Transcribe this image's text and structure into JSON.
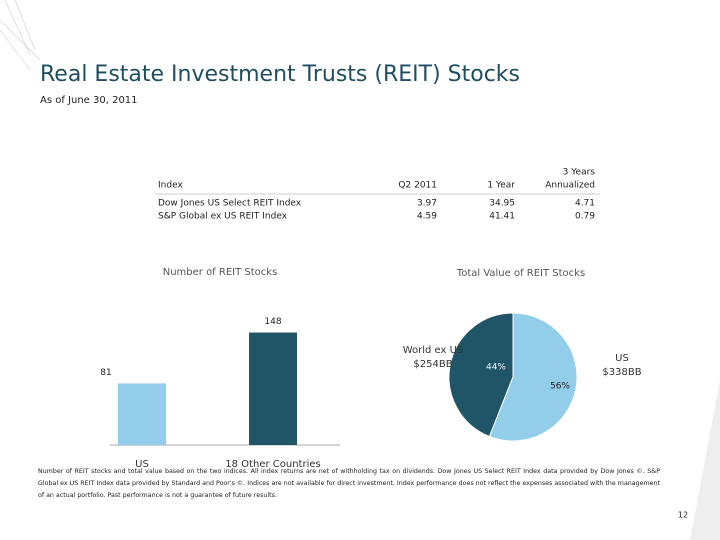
{
  "header": {
    "title": "Real Estate Investment Trusts (REIT) Stocks",
    "subtitle": "As of June 30, 2011"
  },
  "table": {
    "columns": [
      "Index",
      "Q2 2011",
      "1 Year",
      [
        "3 Years",
        "Annualized"
      ]
    ],
    "rows": [
      [
        "Dow Jones US Select REIT Index",
        3.97,
        34.95,
        4.71
      ],
      [
        "S&P Global ex US REIT Index",
        4.59,
        41.41,
        0.79
      ]
    ]
  },
  "chart_data": [
    {
      "type": "bar",
      "title": "Number of REIT Stocks",
      "categories": [
        "US",
        "18 Other Countries"
      ],
      "values": [
        81,
        148
      ],
      "colors": [
        "#92cdea",
        "#1f5566"
      ]
    },
    {
      "type": "pie",
      "title": "Total Value of REIT Stocks",
      "categories": [
        "World ex US",
        "US"
      ],
      "labels": [
        "$254BB",
        "$338BB"
      ],
      "values": [
        44,
        56
      ],
      "value_labels": [
        "44%",
        "56%"
      ],
      "colors": [
        "#1f5566",
        "#92cdea"
      ]
    }
  ],
  "footnote": "Number of REIT stocks and total value based on the two indices. All index returns are net of withholding tax on dividends. Dow Jones US Select REIT Index data provided by Dow Jones ©. S&P Global ex US REIT Index data provided by Standard and Poor's ©. Indices are not available for direct investment. Index performance does not reflect the expenses associated with the management of an actual portfolio. Past performance is not a guarantee of future results.",
  "page_number": "12"
}
